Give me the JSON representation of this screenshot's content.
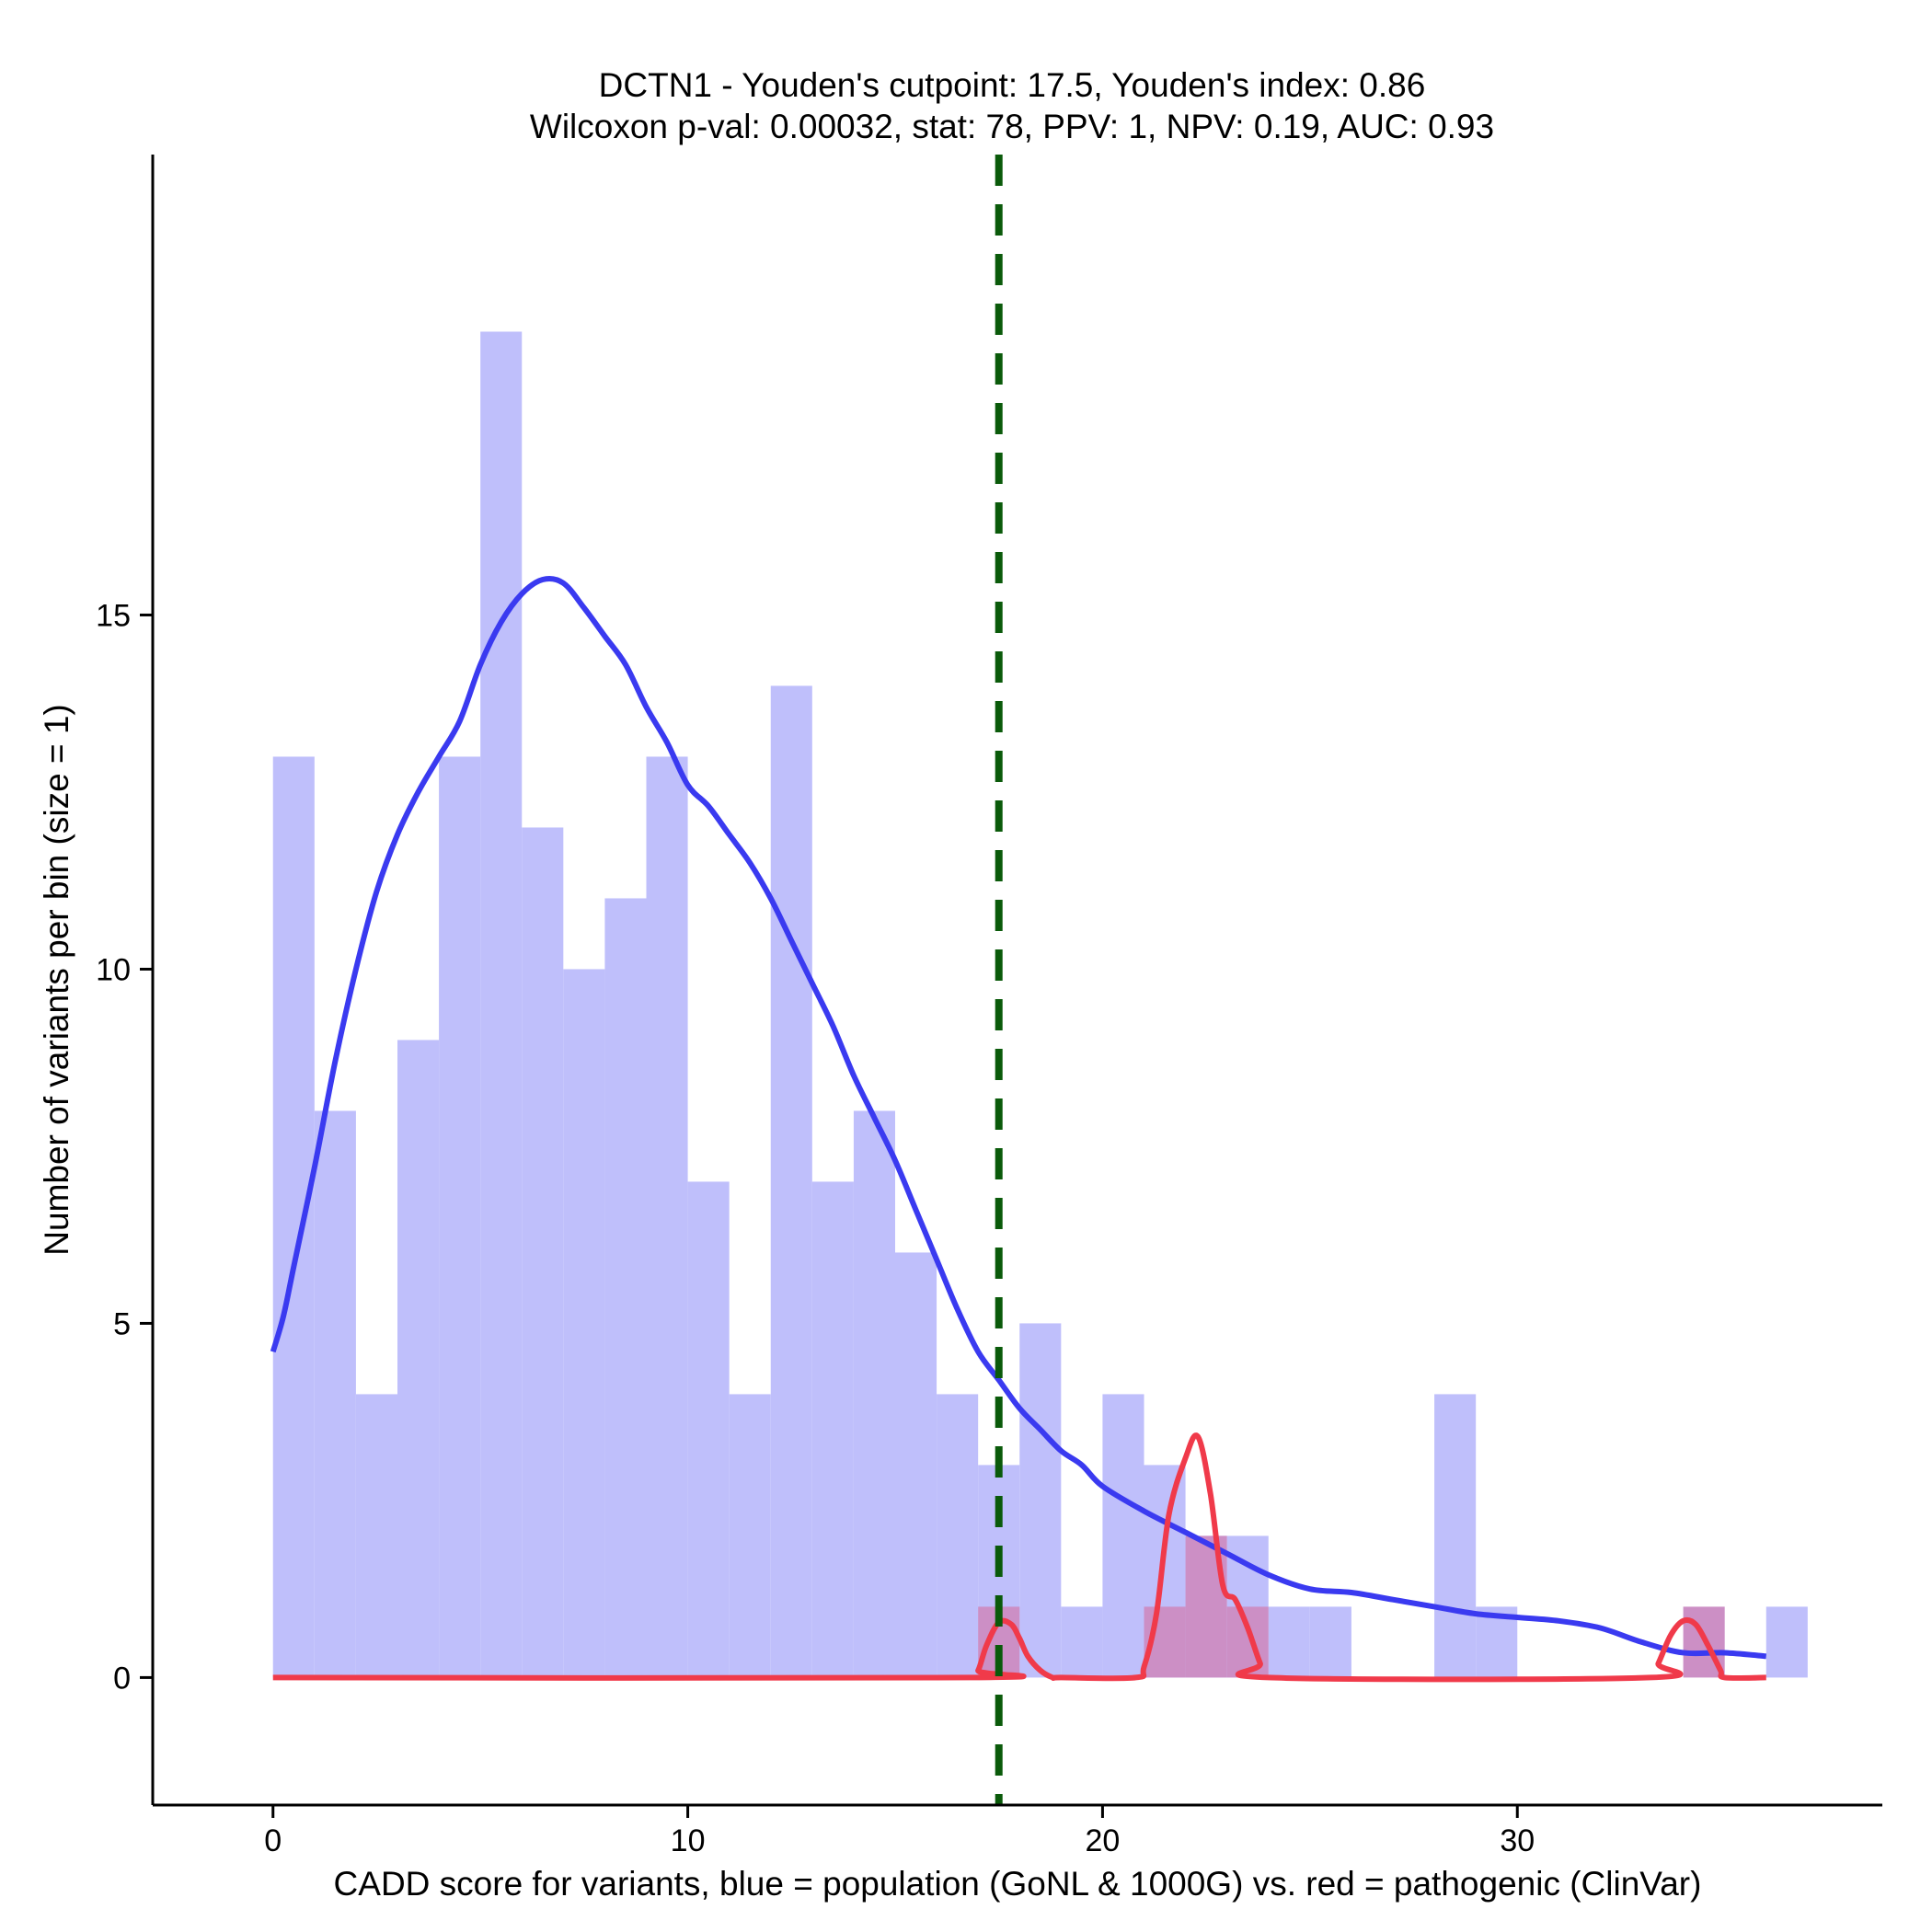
{
  "chart_data": {
    "type": "bar",
    "title_line1": "DCTN1 - Youden's cutpoint: 17.5, Youden's index: 0.86",
    "title_line2": "Wilcoxon p-val: 0.00032, stat: 78, PPV: 1, NPV: 0.19, AUC: 0.93",
    "xlabel": "CADD score for variants, blue = population (GoNL & 1000G) vs. red = pathogenic (ClinVar)",
    "ylabel": "Number of variants per bin (size = 1)",
    "xlim": [
      -2.9,
      38.8
    ],
    "ylim": [
      -1.8,
      21.5
    ],
    "x_ticks": [
      0,
      10,
      20,
      30
    ],
    "y_ticks": [
      0,
      5,
      10,
      15
    ],
    "x_tick_labels": [
      "0",
      "10",
      "20",
      "30"
    ],
    "y_tick_labels": [
      "0",
      "5",
      "10",
      "15"
    ],
    "bin_size": 1,
    "cutpoint": 17.5,
    "colors": {
      "population_bar": "#bfbffb",
      "pathogenic_bar": "#cc8fc5",
      "population_density": "#3a3af0",
      "pathogenic_density": "#f03a4a",
      "cutpoint_line": "#0a5a0a"
    },
    "series": [
      {
        "name": "population (GoNL & 1000G)",
        "bin_starts": [
          0,
          1,
          2,
          3,
          4,
          5,
          6,
          7,
          8,
          9,
          10,
          11,
          12,
          13,
          14,
          15,
          16,
          17,
          18,
          19,
          20,
          21,
          22,
          23,
          24,
          25,
          26,
          27,
          28,
          29,
          30,
          31,
          32,
          33,
          34,
          35,
          36
        ],
        "values": [
          13,
          8,
          4,
          9,
          13,
          19,
          12,
          10,
          11,
          13,
          7,
          4,
          14,
          7,
          8,
          6,
          4,
          3,
          5,
          1,
          4,
          3,
          2,
          2,
          1,
          1,
          0,
          0,
          4,
          1,
          0,
          0,
          0,
          0,
          0,
          0,
          1
        ]
      },
      {
        "name": "pathogenic (ClinVar)",
        "bin_starts": [
          17,
          21,
          22,
          23,
          34
        ],
        "values": [
          1,
          1,
          2,
          1,
          1
        ]
      }
    ],
    "population_density": {
      "x": [
        0,
        0.25,
        0.5,
        1,
        1.5,
        2,
        2.5,
        3,
        3.5,
        4,
        4.5,
        5,
        5.5,
        6,
        6.5,
        7,
        7.5,
        8,
        8.5,
        9,
        9.5,
        10,
        10.5,
        11,
        11.5,
        12,
        12.5,
        13,
        13.5,
        14,
        14.5,
        15,
        15.5,
        16,
        16.5,
        17,
        17.5,
        18,
        18.5,
        19,
        19.5,
        20,
        21,
        22,
        23,
        24,
        25,
        26,
        27,
        28,
        29,
        30,
        31,
        32,
        33,
        34,
        35,
        36
      ],
      "y": [
        4.6,
        5.1,
        5.8,
        7.2,
        8.7,
        10.0,
        11.1,
        11.9,
        12.5,
        13.0,
        13.5,
        14.3,
        14.9,
        15.3,
        15.5,
        15.45,
        15.1,
        14.7,
        14.3,
        13.7,
        13.2,
        12.6,
        12.3,
        11.9,
        11.5,
        11.0,
        10.4,
        9.8,
        9.2,
        8.5,
        7.9,
        7.3,
        6.6,
        5.9,
        5.2,
        4.6,
        4.2,
        3.8,
        3.5,
        3.2,
        3.0,
        2.7,
        2.35,
        2.05,
        1.75,
        1.45,
        1.25,
        1.2,
        1.1,
        1.0,
        0.9,
        0.85,
        0.8,
        0.7,
        0.5,
        0.35,
        0.35,
        0.3
      ]
    },
    "pathogenic_density": {
      "x": [
        0,
        16.8,
        17,
        17.2,
        17.5,
        17.8,
        18,
        18.2,
        18.5,
        18.8,
        19,
        20.8,
        21,
        21.3,
        21.6,
        22,
        22.3,
        22.6,
        22.9,
        23.2,
        23.5,
        23.8,
        24,
        33.2,
        33.4,
        33.7,
        34,
        34.3,
        34.6,
        34.9,
        35,
        36
      ],
      "y": [
        0,
        0,
        0.1,
        0.45,
        0.78,
        0.75,
        0.55,
        0.3,
        0.1,
        0,
        0,
        0,
        0.15,
        0.9,
        2.3,
        3.1,
        3.4,
        2.6,
        1.3,
        1.1,
        0.7,
        0.2,
        0,
        0,
        0.2,
        0.6,
        0.8,
        0.75,
        0.45,
        0.1,
        0,
        0
      ]
    }
  }
}
